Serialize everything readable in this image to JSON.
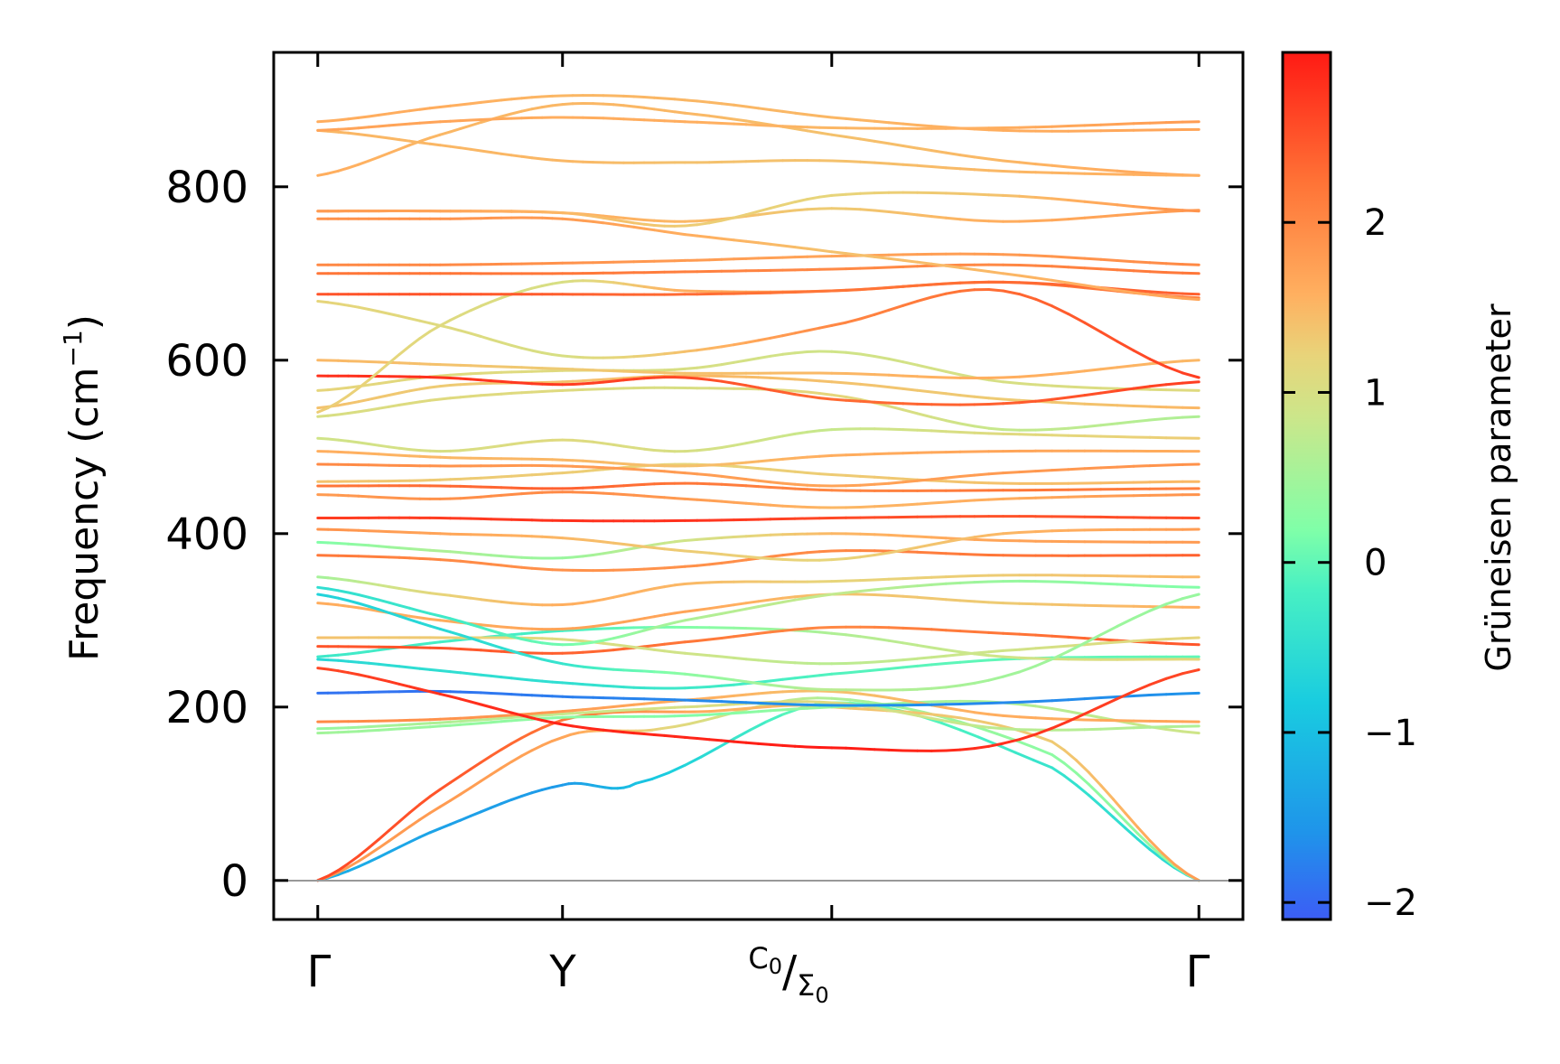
{
  "chart_data": {
    "type": "line",
    "title": "",
    "xlabel": "",
    "ylabel": "Frequency (cm⁻¹)",
    "ylabel_text": "Frequency (cm",
    "ylabel_sup": "−1",
    "ylabel_close": ")",
    "ylim": [
      -45,
      955
    ],
    "yticks": [
      0,
      200,
      400,
      600,
      800
    ],
    "yticklabels": [
      "0",
      "200",
      "400",
      "600",
      "800"
    ],
    "kpath": [
      0,
      1,
      2.1,
      3.6
    ],
    "kpath_labels": [
      "Γ",
      "Y",
      "C₀/Σ₀",
      "Γ"
    ],
    "kpath_split": {
      "top": "C",
      "top_sub": "0",
      "sep": "/",
      "bottom": "Σ",
      "bottom_sub": "0"
    },
    "xlim": [
      -0.18,
      3.78
    ],
    "colorbar": {
      "label": "Grüneisen parameter",
      "range": [
        -2.1,
        3.0
      ],
      "ticks": [
        -2,
        -1,
        0,
        1,
        2
      ],
      "ticklabels": [
        "−2",
        "−1",
        "0",
        "1",
        "2"
      ],
      "colormap": "rainbow"
    },
    "series": [
      {
        "name": "acoustic-1",
        "x": [
          0,
          0.5,
          1,
          1.3,
          2.1,
          3.0,
          3.6
        ],
        "y": [
          0,
          60,
          110,
          112,
          205,
          130,
          0
        ],
        "gamma": [
          -1.2,
          -1.4,
          -1.5,
          -1.0,
          0.2,
          -0.4,
          -0.6
        ]
      },
      {
        "name": "acoustic-2",
        "x": [
          0,
          0.5,
          1,
          1.4,
          2.1,
          3.0,
          3.6
        ],
        "y": [
          0,
          85,
          165,
          175,
          210,
          145,
          0
        ],
        "gamma": [
          1.8,
          1.8,
          1.7,
          1.2,
          0.6,
          0.3,
          0.4
        ]
      },
      {
        "name": "acoustic-3",
        "x": [
          0,
          0.5,
          1,
          1.6,
          2.1,
          3.0,
          3.6
        ],
        "y": [
          0,
          105,
          185,
          195,
          200,
          160,
          0
        ],
        "gamma": [
          2.6,
          2.5,
          2.2,
          1.6,
          1.4,
          1.3,
          1.8
        ]
      },
      {
        "name": "optic-1",
        "x": [
          0,
          0.5,
          1,
          1.5,
          2.1,
          2.8,
          3.6
        ],
        "y": [
          170,
          178,
          188,
          190,
          200,
          205,
          170
        ],
        "gamma": [
          0.5,
          0.4,
          0.3,
          0.2,
          0.4,
          0.6,
          0.9
        ]
      },
      {
        "name": "optic-2",
        "x": [
          0,
          0.5,
          1,
          1.5,
          2.1,
          2.8,
          3.6
        ],
        "y": [
          175,
          182,
          192,
          200,
          205,
          175,
          178
        ],
        "gamma": [
          0.4,
          0.6,
          0.8,
          1.0,
          1.1,
          0.7,
          0.6
        ]
      },
      {
        "name": "optic-3",
        "x": [
          0,
          0.5,
          1,
          1.5,
          2.1,
          2.8,
          3.6
        ],
        "y": [
          183,
          186,
          195,
          208,
          218,
          190,
          183
        ],
        "gamma": [
          2.0,
          1.9,
          1.8,
          1.6,
          1.4,
          1.6,
          1.7
        ]
      },
      {
        "name": "optic-4",
        "x": [
          0,
          0.5,
          1,
          1.5,
          2.1,
          2.8,
          3.6
        ],
        "y": [
          216,
          218,
          212,
          208,
          202,
          205,
          216
        ],
        "gamma": [
          -1.9,
          -1.9,
          -1.8,
          -1.7,
          -1.6,
          -1.7,
          -1.6
        ]
      },
      {
        "name": "optic-5",
        "x": [
          0,
          0.5,
          1,
          1.5,
          2.1,
          2.8,
          3.6
        ],
        "y": [
          245,
          215,
          180,
          165,
          153,
          158,
          243
        ],
        "gamma": [
          2.6,
          2.8,
          2.9,
          2.9,
          3.0,
          2.8,
          2.6
        ]
      },
      {
        "name": "optic-6",
        "x": [
          0,
          0.5,
          1,
          1.5,
          2.1,
          2.8,
          3.6
        ],
        "y": [
          255,
          242,
          228,
          222,
          238,
          255,
          258
        ],
        "gamma": [
          -0.6,
          -0.5,
          -0.5,
          -0.3,
          -0.1,
          0.0,
          0.0
        ]
      },
      {
        "name": "optic-7",
        "x": [
          0,
          0.5,
          1,
          1.5,
          2.1,
          2.8,
          3.6
        ],
        "y": [
          258,
          275,
          288,
          292,
          285,
          258,
          255
        ],
        "gamma": [
          -0.3,
          -0.2,
          -0.2,
          0.2,
          0.6,
          0.9,
          1.2
        ]
      },
      {
        "name": "optic-8",
        "x": [
          0,
          0.5,
          1,
          1.5,
          2.1,
          2.8,
          3.6
        ],
        "y": [
          270,
          268,
          262,
          275,
          292,
          285,
          272
        ],
        "gamma": [
          2.5,
          2.5,
          2.4,
          2.2,
          2.0,
          2.2,
          2.5
        ]
      },
      {
        "name": "optic-9",
        "x": [
          0,
          0.5,
          1,
          1.5,
          2.1,
          2.8,
          3.6
        ],
        "y": [
          280,
          280,
          278,
          262,
          250,
          265,
          280
        ],
        "gamma": [
          1.4,
          1.3,
          1.1,
          0.9,
          0.7,
          0.9,
          1.2
        ]
      },
      {
        "name": "optic-10",
        "x": [
          0,
          0.5,
          1,
          1.5,
          2.1,
          2.8,
          3.6
        ],
        "y": [
          320,
          300,
          290,
          310,
          330,
          320,
          315
        ],
        "gamma": [
          1.6,
          1.6,
          1.7,
          1.7,
          1.4,
          1.3,
          1.6
        ]
      },
      {
        "name": "optic-11",
        "x": [
          0,
          0.5,
          1,
          1.5,
          2.1,
          2.8,
          3.6
        ],
        "y": [
          330,
          290,
          250,
          238,
          220,
          235,
          330
        ],
        "gamma": [
          -0.7,
          -0.6,
          -0.4,
          0.3,
          0.7,
          0.5,
          0.4
        ]
      },
      {
        "name": "optic-12",
        "x": [
          0,
          0.5,
          1,
          1.5,
          2.1,
          2.8,
          3.6
        ],
        "y": [
          338,
          305,
          272,
          300,
          330,
          345,
          338
        ],
        "gamma": [
          -0.5,
          -0.3,
          0.1,
          0.6,
          0.8,
          0.4,
          0.2
        ]
      },
      {
        "name": "optic-13",
        "x": [
          0,
          0.5,
          1,
          1.5,
          2.1,
          2.8,
          3.6
        ],
        "y": [
          350,
          330,
          318,
          342,
          345,
          352,
          350
        ],
        "gamma": [
          0.5,
          1.2,
          1.6,
          1.5,
          1.2,
          1.3,
          1.5
        ]
      },
      {
        "name": "optic-14",
        "x": [
          0,
          0.5,
          1,
          1.5,
          2.1,
          2.8,
          3.6
        ],
        "y": [
          375,
          370,
          358,
          362,
          380,
          375,
          375
        ],
        "gamma": [
          2.2,
          2.0,
          1.9,
          1.9,
          2.0,
          2.2,
          2.4
        ]
      },
      {
        "name": "optic-15",
        "x": [
          0,
          0.5,
          1,
          1.5,
          2.1,
          2.8,
          3.6
        ],
        "y": [
          390,
          380,
          372,
          392,
          400,
          392,
          390
        ],
        "gamma": [
          0.2,
          0.6,
          0.4,
          0.9,
          1.5,
          1.7,
          1.8
        ]
      },
      {
        "name": "optic-16",
        "x": [
          0,
          0.5,
          1,
          1.5,
          2.1,
          2.8,
          3.6
        ],
        "y": [
          405,
          400,
          395,
          380,
          370,
          400,
          405
        ],
        "gamma": [
          1.9,
          1.7,
          1.5,
          1.3,
          1.2,
          1.5,
          1.8
        ]
      },
      {
        "name": "optic-17",
        "x": [
          0,
          0.5,
          1,
          1.5,
          2.1,
          2.8,
          3.6
        ],
        "y": [
          418,
          418,
          415,
          415,
          418,
          420,
          418
        ],
        "gamma": [
          2.7,
          2.7,
          2.8,
          2.8,
          2.6,
          2.5,
          2.6
        ]
      },
      {
        "name": "optic-18",
        "x": [
          0,
          0.5,
          1,
          1.5,
          2.1,
          2.8,
          3.6
        ],
        "y": [
          445,
          440,
          448,
          440,
          430,
          440,
          445
        ],
        "gamma": [
          1.8,
          1.9,
          2.0,
          1.8,
          1.5,
          1.6,
          1.9
        ]
      },
      {
        "name": "optic-19",
        "x": [
          0,
          0.5,
          1,
          1.5,
          2.1,
          2.8,
          3.6
        ],
        "y": [
          455,
          455,
          452,
          458,
          450,
          450,
          452
        ],
        "gamma": [
          2.2,
          2.3,
          2.4,
          2.2,
          2.0,
          2.2,
          2.1
        ]
      },
      {
        "name": "optic-20",
        "x": [
          0,
          0.5,
          1,
          1.5,
          2.1,
          2.8,
          3.6
        ],
        "y": [
          460,
          462,
          470,
          480,
          468,
          458,
          460
        ],
        "gamma": [
          1.4,
          1.3,
          1.3,
          1.2,
          1.3,
          1.4,
          1.5
        ]
      },
      {
        "name": "optic-21",
        "x": [
          0,
          0.5,
          1,
          1.5,
          2.1,
          2.8,
          3.6
        ],
        "y": [
          480,
          478,
          478,
          470,
          455,
          470,
          480
        ],
        "gamma": [
          2.0,
          1.9,
          1.8,
          1.8,
          1.7,
          1.8,
          1.9
        ]
      },
      {
        "name": "optic-22",
        "x": [
          0,
          0.5,
          1,
          1.5,
          2.1,
          2.8,
          3.6
        ],
        "y": [
          495,
          488,
          485,
          478,
          490,
          495,
          495
        ],
        "gamma": [
          1.6,
          1.5,
          1.5,
          1.4,
          1.6,
          1.7,
          1.6
        ]
      },
      {
        "name": "optic-23",
        "x": [
          0,
          0.5,
          1,
          1.5,
          2.1,
          2.8,
          3.6
        ],
        "y": [
          510,
          495,
          508,
          495,
          520,
          515,
          510
        ],
        "gamma": [
          0.9,
          1.0,
          1.1,
          1.0,
          0.8,
          1.1,
          1.3
        ]
      },
      {
        "name": "optic-24",
        "x": [
          0,
          0.5,
          1,
          1.5,
          2.1,
          2.8,
          3.6
        ],
        "y": [
          535,
          555,
          565,
          568,
          560,
          520,
          535
        ],
        "gamma": [
          1.0,
          1.1,
          1.1,
          1.0,
          1.2,
          0.8,
          0.6
        ]
      },
      {
        "name": "optic-25",
        "x": [
          0,
          0.5,
          1,
          1.5,
          2.1,
          2.8,
          3.6
        ],
        "y": [
          545,
          570,
          575,
          582,
          575,
          555,
          545
        ],
        "gamma": [
          1.4,
          1.3,
          1.4,
          1.5,
          1.4,
          1.3,
          1.5
        ]
      },
      {
        "name": "optic-26",
        "x": [
          0,
          0.5,
          1,
          1.5,
          2.1,
          2.8,
          3.6
        ],
        "y": [
          565,
          582,
          588,
          590,
          610,
          575,
          565
        ],
        "gamma": [
          1.2,
          1.1,
          1.1,
          1.0,
          0.9,
          1.0,
          1.1
        ]
      },
      {
        "name": "optic-27",
        "x": [
          0,
          0.5,
          1,
          1.5,
          2.1,
          2.8,
          3.6
        ],
        "y": [
          582,
          580,
          572,
          580,
          555,
          550,
          575
        ],
        "gamma": [
          2.8,
          2.8,
          2.7,
          2.6,
          2.3,
          2.4,
          2.7
        ]
      },
      {
        "name": "optic-28",
        "x": [
          0,
          0.5,
          1,
          1.5,
          2.1,
          2.8,
          3.6
        ],
        "y": [
          600,
          595,
          590,
          585,
          585,
          580,
          600
        ],
        "gamma": [
          1.5,
          1.4,
          1.3,
          1.4,
          1.5,
          1.6,
          1.5
        ]
      },
      {
        "name": "optic-29",
        "x": [
          0,
          0.5,
          1,
          1.5,
          2.1,
          2.8,
          3.6
        ],
        "y": [
          540,
          640,
          690,
          680,
          680,
          690,
          672
        ],
        "gamma": [
          1.3,
          1.1,
          1.0,
          1.6,
          2.0,
          2.2,
          2.1
        ]
      },
      {
        "name": "optic-30",
        "x": [
          0,
          0.5,
          1,
          1.5,
          2.1,
          2.8,
          3.6
        ],
        "y": [
          668,
          640,
          605,
          610,
          640,
          680,
          580
        ],
        "gamma": [
          1.2,
          1.1,
          1.0,
          1.4,
          2.0,
          2.3,
          2.7
        ]
      },
      {
        "name": "optic-31",
        "x": [
          0,
          0.5,
          1,
          1.5,
          2.1,
          2.8,
          3.6
        ],
        "y": [
          676,
          676,
          676,
          676,
          680,
          690,
          676
        ],
        "gamma": [
          2.5,
          2.5,
          2.4,
          2.3,
          2.2,
          2.3,
          2.4
        ]
      },
      {
        "name": "optic-32",
        "x": [
          0,
          0.5,
          1,
          1.5,
          2.1,
          2.8,
          3.6
        ],
        "y": [
          700,
          700,
          700,
          702,
          705,
          710,
          700
        ],
        "gamma": [
          2.2,
          2.2,
          2.2,
          2.1,
          2.0,
          2.0,
          2.2
        ]
      },
      {
        "name": "optic-33",
        "x": [
          0,
          0.5,
          1,
          1.5,
          2.1,
          2.8,
          3.6
        ],
        "y": [
          710,
          710,
          712,
          715,
          720,
          722,
          710
        ],
        "gamma": [
          2.0,
          2.0,
          1.9,
          1.8,
          1.7,
          1.8,
          2.0
        ]
      },
      {
        "name": "optic-34",
        "x": [
          0,
          0.5,
          1,
          1.5,
          2.1,
          2.8,
          3.6
        ],
        "y": [
          763,
          763,
          763,
          745,
          725,
          700,
          670
        ],
        "gamma": [
          1.9,
          1.9,
          1.8,
          1.6,
          1.4,
          1.5,
          1.7
        ]
      },
      {
        "name": "optic-35",
        "x": [
          0,
          0.5,
          1,
          1.5,
          2.1,
          2.8,
          3.6
        ],
        "y": [
          772,
          772,
          770,
          760,
          775,
          760,
          773
        ],
        "gamma": [
          1.7,
          1.7,
          1.6,
          1.5,
          1.3,
          1.6,
          1.8
        ]
      },
      {
        "name": "optic-36",
        "x": [
          0,
          0.5,
          1,
          1.5,
          2.1,
          2.8,
          3.6
        ],
        "y": [
          772,
          772,
          770,
          755,
          790,
          790,
          772
        ],
        "gamma": [
          1.8,
          1.7,
          1.5,
          1.3,
          1.2,
          1.4,
          1.9
        ]
      },
      {
        "name": "optic-37",
        "x": [
          0,
          0.5,
          1,
          1.5,
          2.1,
          2.8,
          3.6
        ],
        "y": [
          813,
          860,
          895,
          885,
          860,
          830,
          813
        ],
        "gamma": [
          1.6,
          1.5,
          1.5,
          1.5,
          1.4,
          1.5,
          1.7
        ]
      },
      {
        "name": "optic-38",
        "x": [
          0,
          0.5,
          1,
          1.5,
          2.1,
          2.8,
          3.6
        ],
        "y": [
          865,
          848,
          830,
          828,
          830,
          818,
          813
        ],
        "gamma": [
          1.5,
          1.5,
          1.5,
          1.4,
          1.4,
          1.5,
          1.6
        ]
      },
      {
        "name": "optic-39",
        "x": [
          0,
          0.5,
          1,
          1.5,
          2.1,
          2.8,
          3.6
        ],
        "y": [
          875,
          892,
          905,
          900,
          880,
          865,
          866
        ],
        "gamma": [
          1.6,
          1.6,
          1.5,
          1.5,
          1.5,
          1.6,
          1.7
        ]
      },
      {
        "name": "optic-40",
        "x": [
          0,
          0.5,
          1,
          1.5,
          2.1,
          2.8,
          3.6
        ],
        "y": [
          865,
          875,
          880,
          875,
          868,
          868,
          875
        ],
        "gamma": [
          1.7,
          1.7,
          1.6,
          1.6,
          1.5,
          1.6,
          1.8
        ]
      }
    ]
  }
}
